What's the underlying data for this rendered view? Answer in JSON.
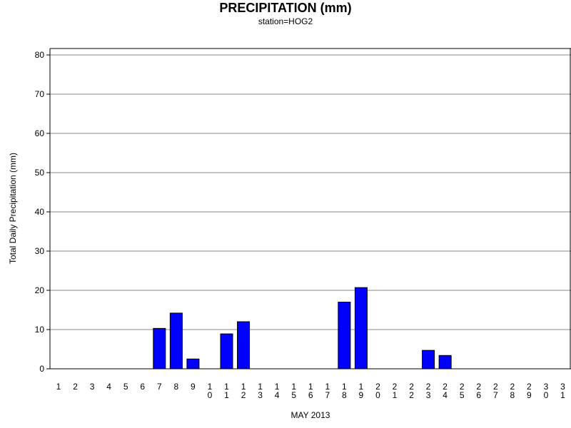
{
  "chart_data": {
    "type": "bar",
    "title": "PRECIPITATION (mm)",
    "subtitle": "station=HOG2",
    "xlabel": "MAY 2013",
    "ylabel": "Total Daily Precipitation (mm)",
    "ylim": [
      0,
      80
    ],
    "yticks": [
      0,
      10,
      20,
      30,
      40,
      50,
      60,
      70,
      80
    ],
    "grid": true,
    "categories": [
      "1",
      "2",
      "3",
      "4",
      "5",
      "6",
      "7",
      "8",
      "9",
      "10",
      "11",
      "12",
      "13",
      "14",
      "15",
      "16",
      "17",
      "18",
      "19",
      "20",
      "21",
      "22",
      "23",
      "24",
      "25",
      "26",
      "27",
      "28",
      "29",
      "30",
      "31"
    ],
    "values": [
      0,
      0,
      0,
      0,
      0,
      0,
      10.3,
      14.2,
      2.5,
      0,
      8.9,
      12.0,
      0,
      0,
      0,
      0,
      0,
      17.0,
      20.7,
      0,
      0,
      0,
      4.7,
      3.4,
      0,
      0,
      0,
      0,
      0,
      0,
      0
    ],
    "bar_color": "#0000ff"
  }
}
